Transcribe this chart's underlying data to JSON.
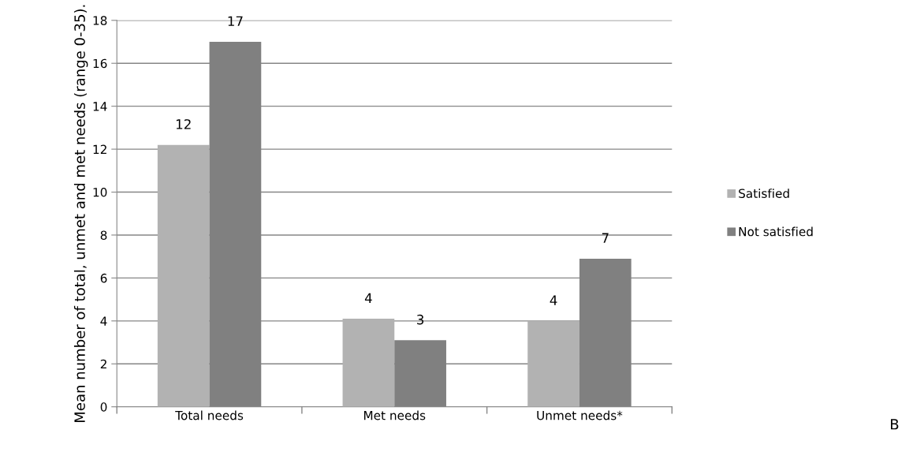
{
  "chart_data": {
    "type": "bar",
    "ylabel": "Mean number of total, unmet and met needs (range 0-35).",
    "categories": [
      "Total needs",
      "Met needs",
      "Unmet needs*"
    ],
    "series": [
      {
        "name": "Satisfied",
        "color": "#b2b2b2",
        "values": [
          12.2,
          4.1,
          4.0
        ],
        "value_labels": [
          "12",
          "4",
          "4"
        ]
      },
      {
        "name": "Not satisfied",
        "color": "#808080",
        "values": [
          17.0,
          3.1,
          6.9
        ],
        "value_labels": [
          "17",
          "3",
          "7"
        ]
      }
    ],
    "ylim": [
      0,
      18
    ],
    "yticks": [
      0,
      2,
      4,
      6,
      8,
      10,
      12,
      14,
      16,
      18
    ],
    "grid": "y",
    "legend": "right",
    "annotations": [
      "B"
    ]
  }
}
